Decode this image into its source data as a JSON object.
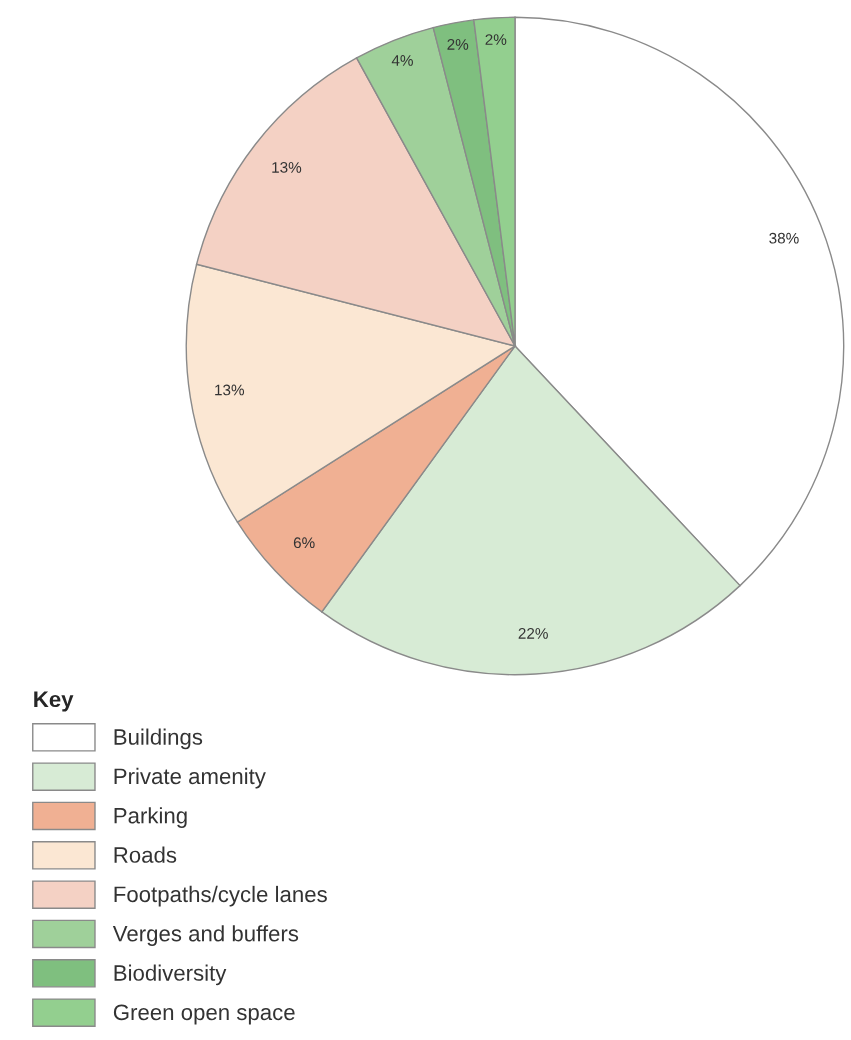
{
  "chart_data": {
    "type": "pie",
    "categories": [
      "Buildings",
      "Private amenity",
      "Parking",
      "Roads",
      "Footpaths/cycle lanes",
      "Verges and buffers",
      "Biodiversity",
      "Green open space"
    ],
    "values": [
      38,
      22,
      6,
      13,
      13,
      4,
      2,
      2
    ],
    "colors": [
      "#ffffff",
      "#d7ebd5",
      "#f0b093",
      "#fbe7d3",
      "#f4d1c4",
      "#9fd09a",
      "#7fbf7f",
      "#93cf8f"
    ],
    "value_labels": [
      "38%",
      "22%",
      "6%",
      "13%",
      "13%",
      "4%",
      "2%",
      "2%"
    ],
    "legend_title": "Key",
    "legend": "bottom left"
  }
}
